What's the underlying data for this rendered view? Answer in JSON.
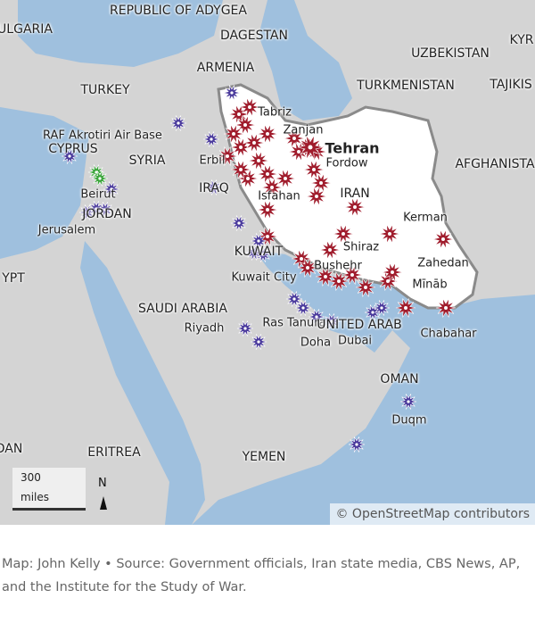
{
  "colors": {
    "water": "#9fc0de",
    "land": "#d4d4d4",
    "iran": "#ffffff",
    "iran_border": "#8a8a8a",
    "strike_red": "#a01c2c",
    "strike_purple": "#4a3a9c",
    "strike_green": "#3aa53a"
  },
  "labels": {
    "adygea": "REPUBLIC OF ADYGEA",
    "bulgaria": "ULGARIA",
    "dagestan": "DAGESTAN",
    "kyr": "KYR",
    "uzbekistan": "UZBEKISTAN",
    "armenia": "ARMENIA",
    "turkey": "TURKEY",
    "turkmenistan": "TURKMENISTAN",
    "tajik": "TAJIKIS",
    "afghanistan": "AFGHANISTA",
    "cyprus": "CYPRUS",
    "syria": "SYRIA",
    "iraq": "IRAQ",
    "iran": "IRAN",
    "jordan": "JORDAN",
    "kuwait": "KUWAIT",
    "egypt": "YPT",
    "saudi": "SAUDI ARABIA",
    "uae": "UNITED ARAB",
    "oman": "OMAN",
    "sudan": "DAN",
    "eritrea": "ERITREA",
    "yemen": "YEMEN"
  },
  "cities": {
    "tabriz": "Tabriz",
    "akrotiri": "RAF Akrotiri Air Base",
    "zanjan": "Zanjan",
    "tehran": "Tehran",
    "erbil": "Erbil",
    "fordow": "Fordow",
    "isfahan": "Isfahan",
    "beirut": "Beirut",
    "kerman": "Kerman",
    "jerusalem": "Jerusalem",
    "shiraz": "Shiraz",
    "zahedan": "Zahedan",
    "bushehr": "Bushehr",
    "kuwait_city": "Kuwait City",
    "minab": "Mīnāb",
    "ras_tanura": "Ras Tanura",
    "riyadh": "Riyadh",
    "chabahar": "Chabahar",
    "doha": "Doha",
    "dubai": "Dubai",
    "duqm": "Duqm"
  },
  "scale": {
    "value": "300",
    "unit": "miles"
  },
  "north": "N",
  "attribution": "© OpenStreetMap contributors",
  "caption": "Map: John Kelly • Source: Government officials, Iran state media, CBS News, AP, and the Institute for the Study of War."
}
